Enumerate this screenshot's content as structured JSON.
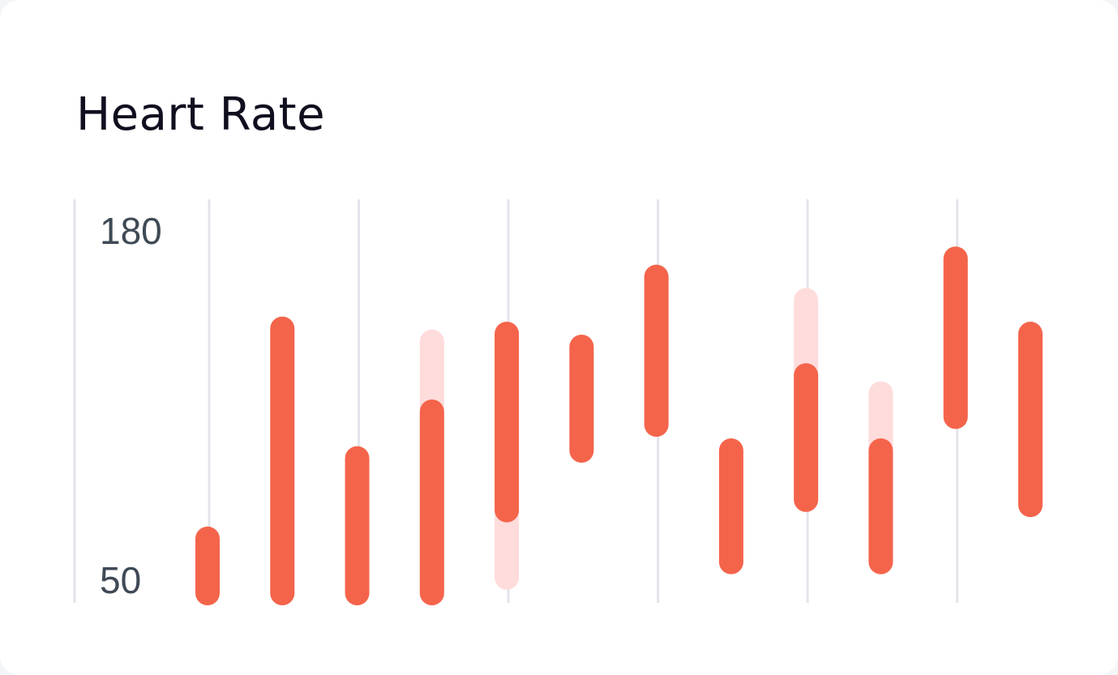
{
  "card": {
    "title": "Heart Rate"
  },
  "chart_data": {
    "type": "range-bar",
    "title": "Heart Rate",
    "ylim": [
      50,
      180
    ],
    "y_tick_labels": [
      "180",
      "50"
    ],
    "grid": "vertical lines",
    "colors": {
      "range": "#f4644b",
      "ghost": "#ffdcdc",
      "grid": "#e3e4ec",
      "tick_label": "#3f4a55"
    },
    "series": [
      {
        "name": "",
        "role": "range",
        "values": [
          {
            "low": 50,
            "high": 71
          },
          {
            "low": 50,
            "high": 152
          },
          {
            "low": 50,
            "high": 102
          },
          {
            "low": 50,
            "high": 120
          },
          {
            "low": 82,
            "high": 150
          },
          {
            "low": 105,
            "high": 145
          },
          {
            "low": 115,
            "high": 172
          },
          {
            "low": 62,
            "high": 105
          },
          {
            "low": 86,
            "high": 134
          },
          {
            "low": 62,
            "high": 105
          },
          {
            "low": 118,
            "high": 179
          },
          {
            "low": 84,
            "high": 150
          }
        ]
      },
      {
        "name": "",
        "role": "ghost",
        "values": [
          null,
          null,
          null,
          {
            "low": 50,
            "high": 147
          },
          {
            "low": 56,
            "high": 150
          },
          null,
          null,
          null,
          {
            "low": 86,
            "high": 163
          },
          {
            "low": 62,
            "high": 127
          },
          null,
          null
        ]
      }
    ]
  }
}
